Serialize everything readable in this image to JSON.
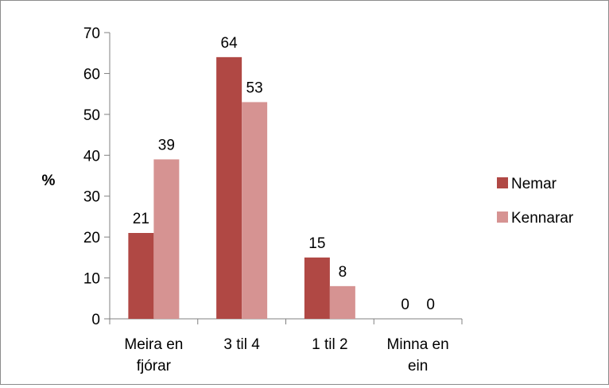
{
  "chart_data": {
    "type": "bar",
    "categories": [
      [
        "Meira en",
        "fjórar"
      ],
      [
        "3 til 4"
      ],
      [
        "1 til 2"
      ],
      [
        "Minna en",
        "ein"
      ]
    ],
    "series": [
      {
        "name": "Nemar",
        "values": [
          21,
          64,
          15,
          0
        ],
        "color": "#b04844"
      },
      {
        "name": "Kennarar",
        "values": [
          39,
          53,
          8,
          0
        ],
        "color": "#d69392"
      }
    ],
    "yticks": [
      0,
      10,
      20,
      30,
      40,
      50,
      60,
      70
    ],
    "ylim": [
      0,
      70
    ],
    "ylabel": "%",
    "xlabel": "",
    "title": "",
    "legend_position": "right",
    "grid": false,
    "data_labels": true
  }
}
